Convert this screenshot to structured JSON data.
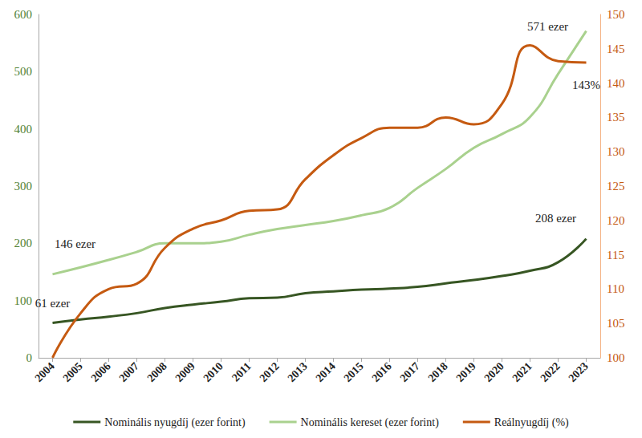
{
  "chart_data": {
    "type": "line",
    "categories": [
      "2004",
      "2005",
      "2006",
      "2007",
      "2008",
      "2009",
      "2010",
      "2011",
      "2012",
      "2013",
      "2014",
      "2015",
      "2016",
      "2017",
      "2018",
      "2019",
      "2020",
      "2021",
      "2022",
      "2023"
    ],
    "series": [
      {
        "name": "Nominális nyugdíj (ezer forint)",
        "color": "#375623",
        "axis": "y",
        "values": [
          61,
          67,
          72,
          78,
          87,
          93,
          98,
          104,
          105,
          113,
          116,
          119,
          121,
          124,
          130,
          136,
          143,
          152,
          167,
          208
        ]
      },
      {
        "name": "Nominális kereset (ezer forint)",
        "color": "#a9d18e",
        "axis": "y",
        "values": [
          146,
          158,
          171,
          185,
          200,
          200,
          203,
          215,
          225,
          232,
          239,
          249,
          262,
          297,
          330,
          367,
          391,
          421,
          496,
          571
        ]
      },
      {
        "name": "Reálnyugdíj (%)",
        "color": "#c55a11",
        "axis": "y2",
        "values": [
          100,
          106.5,
          110,
          110.8,
          116,
          118.8,
          120,
          121.4,
          121.6,
          126,
          129.5,
          132,
          133.5,
          133.5,
          135,
          134,
          137,
          145.5,
          143.2,
          143
        ]
      }
    ],
    "ylim": [
      0,
      600
    ],
    "yticks": [
      0,
      100,
      200,
      300,
      400,
      500,
      600
    ],
    "y2lim": [
      100,
      150
    ],
    "y2ticks": [
      100,
      105,
      110,
      115,
      120,
      125,
      130,
      135,
      140,
      145,
      150
    ],
    "grid": false,
    "legend": "bottom",
    "annotations": [
      {
        "text": "146 ezer",
        "series": "Nominális kereset (ezer forint)",
        "category": "2004"
      },
      {
        "text": "61 ezer",
        "series": "Nominális nyugdíj (ezer forint)",
        "category": "2004"
      },
      {
        "text": "208 ezer",
        "series": "Nominális nyugdíj (ezer forint)",
        "category": "2023"
      },
      {
        "text": "571 ezer",
        "series": "Nominális kereset (ezer forint)",
        "category": "2023"
      },
      {
        "text": "143%",
        "series": "Reálnyugdíj (%)",
        "category": "2023"
      }
    ]
  }
}
